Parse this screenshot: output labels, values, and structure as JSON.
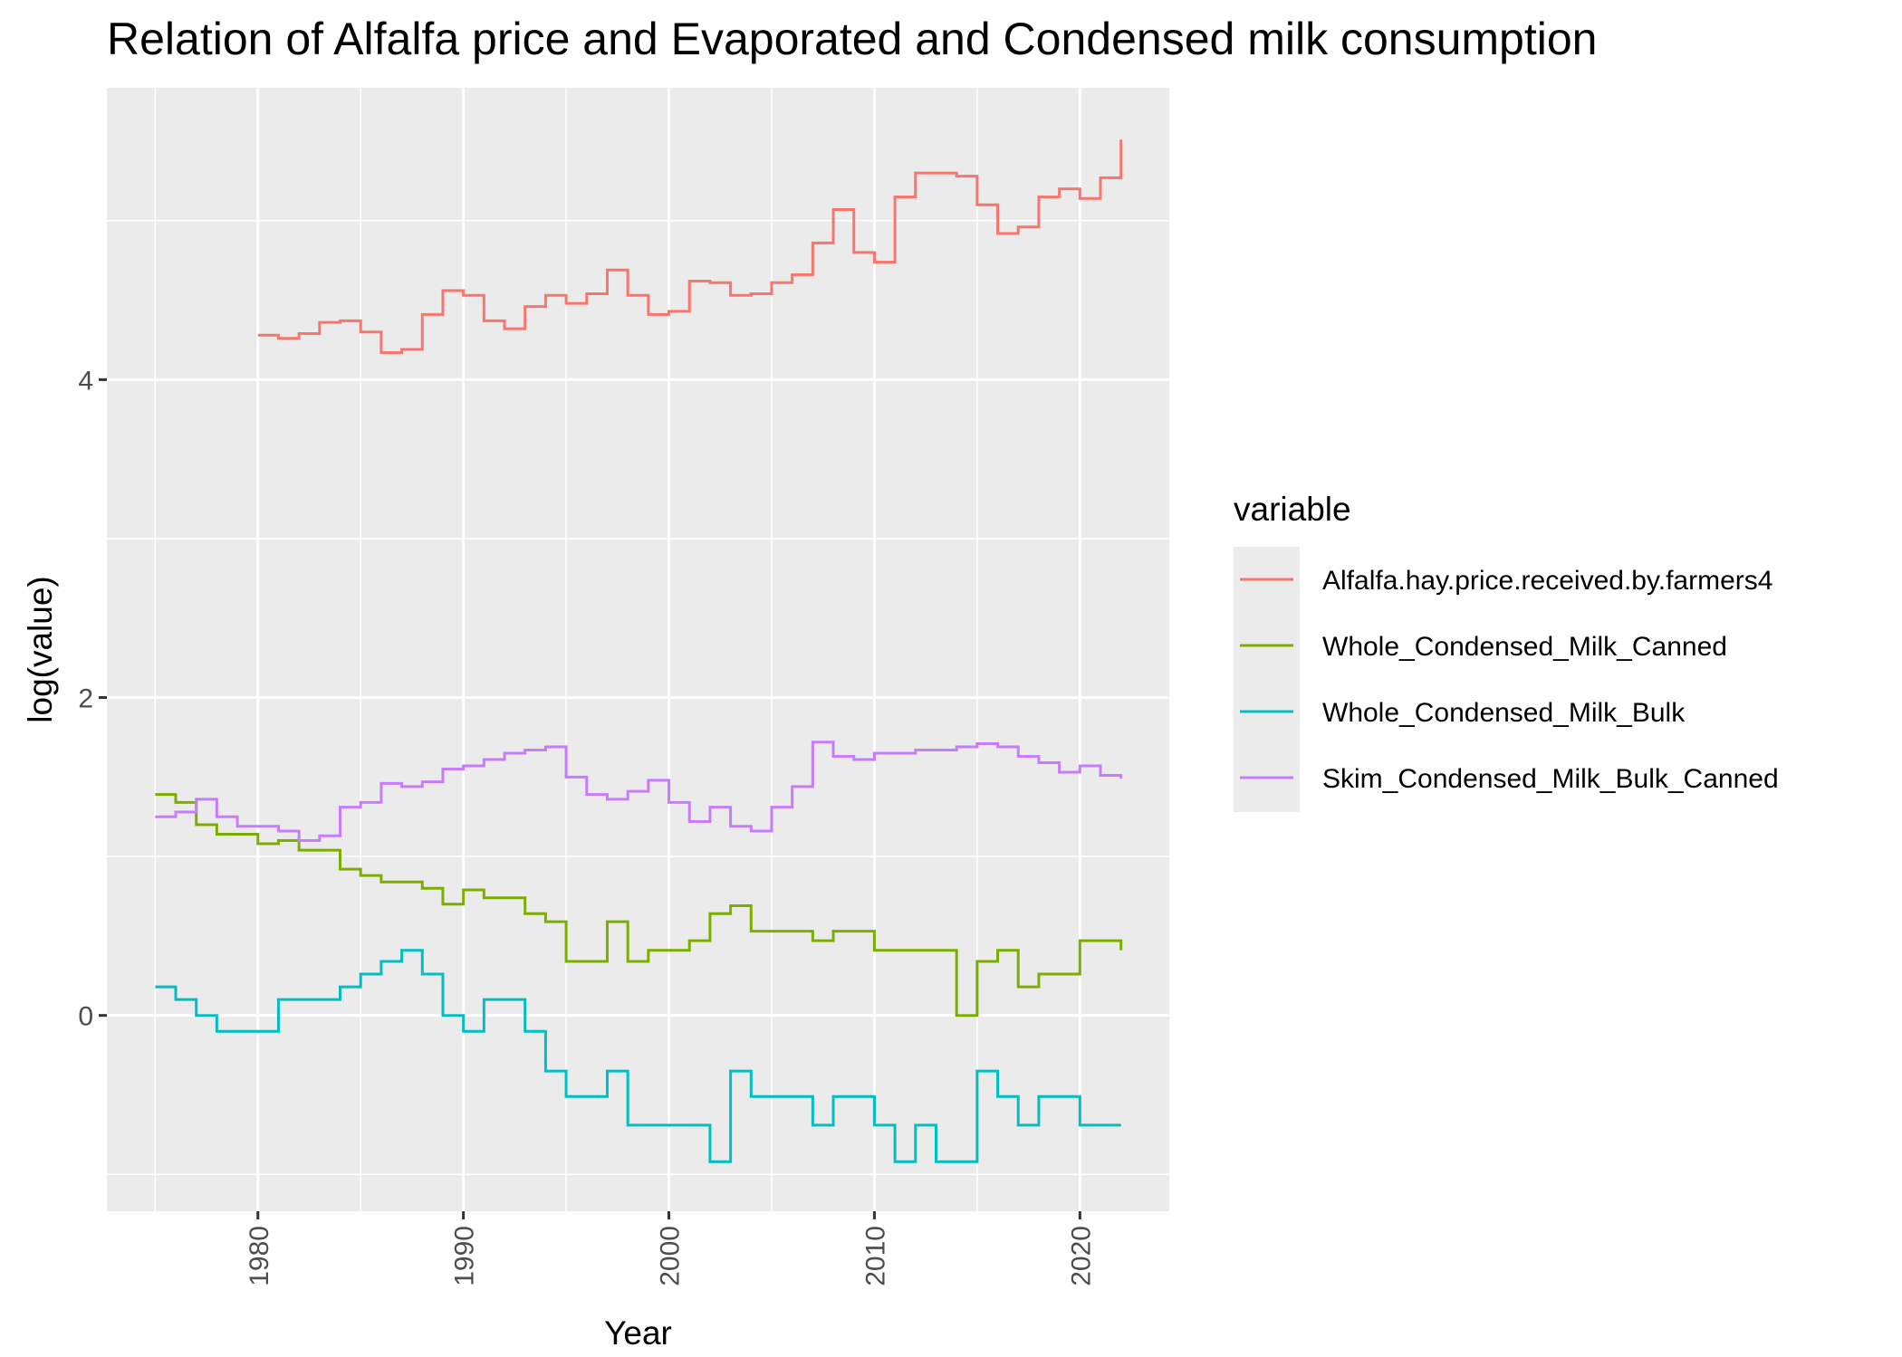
{
  "chart_data": {
    "type": "line",
    "step": true,
    "title": "Relation of Alfalfa price and Evaporated and Condensed milk consumption",
    "xlabel": "Year",
    "ylabel": "log(value)",
    "xlim": [
      1972.65,
      2024.35
    ],
    "ylim": [
      -1.232,
      5.836
    ],
    "x_ticks": [
      1980,
      1990,
      2000,
      2010,
      2020
    ],
    "y_ticks": [
      0,
      2,
      4
    ],
    "y_minor": [
      -1,
      1,
      3,
      5
    ],
    "grid": true,
    "legend": {
      "title": "variable",
      "position": "right"
    },
    "series": [
      {
        "name": "Alfalfa.hay.price.received.by.farmers4",
        "color": "#F8766D",
        "x": [
          1980,
          1981,
          1982,
          1983,
          1984,
          1985,
          1986,
          1987,
          1988,
          1989,
          1990,
          1991,
          1992,
          1993,
          1994,
          1995,
          1996,
          1997,
          1998,
          1999,
          2000,
          2001,
          2002,
          2003,
          2004,
          2005,
          2006,
          2007,
          2008,
          2009,
          2010,
          2011,
          2012,
          2013,
          2014,
          2015,
          2016,
          2017,
          2018,
          2019,
          2020,
          2021,
          2022
        ],
        "y": [
          4.28,
          4.26,
          4.29,
          4.36,
          4.37,
          4.3,
          4.17,
          4.19,
          4.41,
          4.56,
          4.53,
          4.37,
          4.32,
          4.46,
          4.53,
          4.48,
          4.54,
          4.69,
          4.53,
          4.41,
          4.43,
          4.62,
          4.61,
          4.53,
          4.54,
          4.61,
          4.66,
          4.86,
          5.07,
          4.8,
          4.74,
          5.15,
          5.3,
          5.3,
          5.28,
          5.1,
          4.92,
          4.96,
          5.15,
          5.2,
          5.14,
          5.27,
          5.51
        ]
      },
      {
        "name": "Whole_Condensed_Milk_Canned",
        "color": "#7CAE00",
        "x": [
          1975,
          1976,
          1977,
          1978,
          1979,
          1980,
          1981,
          1982,
          1983,
          1984,
          1985,
          1986,
          1987,
          1988,
          1989,
          1990,
          1991,
          1992,
          1993,
          1994,
          1995,
          1996,
          1997,
          1998,
          1999,
          2000,
          2001,
          2002,
          2003,
          2004,
          2005,
          2006,
          2007,
          2008,
          2009,
          2010,
          2011,
          2012,
          2013,
          2014,
          2015,
          2016,
          2017,
          2018,
          2019,
          2020,
          2021,
          2022
        ],
        "y": [
          1.39,
          1.34,
          1.2,
          1.14,
          1.14,
          1.08,
          1.1,
          1.04,
          1.04,
          0.92,
          0.88,
          0.84,
          0.84,
          0.8,
          0.7,
          0.79,
          0.74,
          0.74,
          0.64,
          0.59,
          0.34,
          0.34,
          0.59,
          0.34,
          0.41,
          0.41,
          0.47,
          0.64,
          0.69,
          0.53,
          0.53,
          0.53,
          0.47,
          0.53,
          0.53,
          0.41,
          0.41,
          0.41,
          0.41,
          0.0,
          0.34,
          0.41,
          0.18,
          0.26,
          0.26,
          0.47,
          0.47,
          0.41
        ]
      },
      {
        "name": "Whole_Condensed_Milk_Bulk",
        "color": "#00BFC4",
        "x": [
          1975,
          1976,
          1977,
          1978,
          1979,
          1980,
          1981,
          1982,
          1983,
          1984,
          1985,
          1986,
          1987,
          1988,
          1989,
          1990,
          1991,
          1992,
          1993,
          1994,
          1995,
          1996,
          1997,
          1998,
          1999,
          2000,
          2001,
          2002,
          2003,
          2004,
          2005,
          2006,
          2007,
          2008,
          2009,
          2010,
          2011,
          2012,
          2013,
          2014,
          2015,
          2016,
          2017,
          2018,
          2019,
          2020,
          2021,
          2022
        ],
        "y": [
          0.18,
          0.1,
          0.0,
          -0.1,
          -0.1,
          -0.1,
          0.1,
          0.1,
          0.1,
          0.18,
          0.26,
          0.34,
          0.41,
          0.26,
          0.0,
          -0.1,
          0.1,
          0.1,
          -0.1,
          -0.35,
          -0.51,
          -0.51,
          -0.35,
          -0.69,
          -0.69,
          -0.69,
          -0.69,
          -0.92,
          -0.35,
          -0.51,
          -0.51,
          -0.51,
          -0.69,
          -0.51,
          -0.51,
          -0.69,
          -0.92,
          -0.69,
          -0.92,
          -0.92,
          -0.35,
          -0.51,
          -0.69,
          -0.51,
          -0.51,
          -0.69,
          -0.69,
          -0.69
        ]
      },
      {
        "name": "Skim_Condensed_Milk_Bulk_Canned",
        "color": "#C77CFF",
        "x": [
          1975,
          1976,
          1977,
          1978,
          1979,
          1980,
          1981,
          1982,
          1983,
          1984,
          1985,
          1986,
          1987,
          1988,
          1989,
          1990,
          1991,
          1992,
          1993,
          1994,
          1995,
          1996,
          1997,
          1998,
          1999,
          2000,
          2001,
          2002,
          2003,
          2004,
          2005,
          2006,
          2007,
          2008,
          2009,
          2010,
          2011,
          2012,
          2013,
          2014,
          2015,
          2016,
          2017,
          2018,
          2019,
          2020,
          2021,
          2022
        ],
        "y": [
          1.25,
          1.28,
          1.36,
          1.25,
          1.19,
          1.19,
          1.16,
          1.1,
          1.13,
          1.31,
          1.34,
          1.46,
          1.44,
          1.47,
          1.55,
          1.57,
          1.61,
          1.65,
          1.67,
          1.69,
          1.5,
          1.39,
          1.36,
          1.41,
          1.48,
          1.34,
          1.22,
          1.31,
          1.19,
          1.16,
          1.31,
          1.44,
          1.72,
          1.63,
          1.61,
          1.65,
          1.65,
          1.67,
          1.67,
          1.69,
          1.71,
          1.69,
          1.63,
          1.59,
          1.53,
          1.57,
          1.51,
          1.49
        ]
      }
    ]
  }
}
